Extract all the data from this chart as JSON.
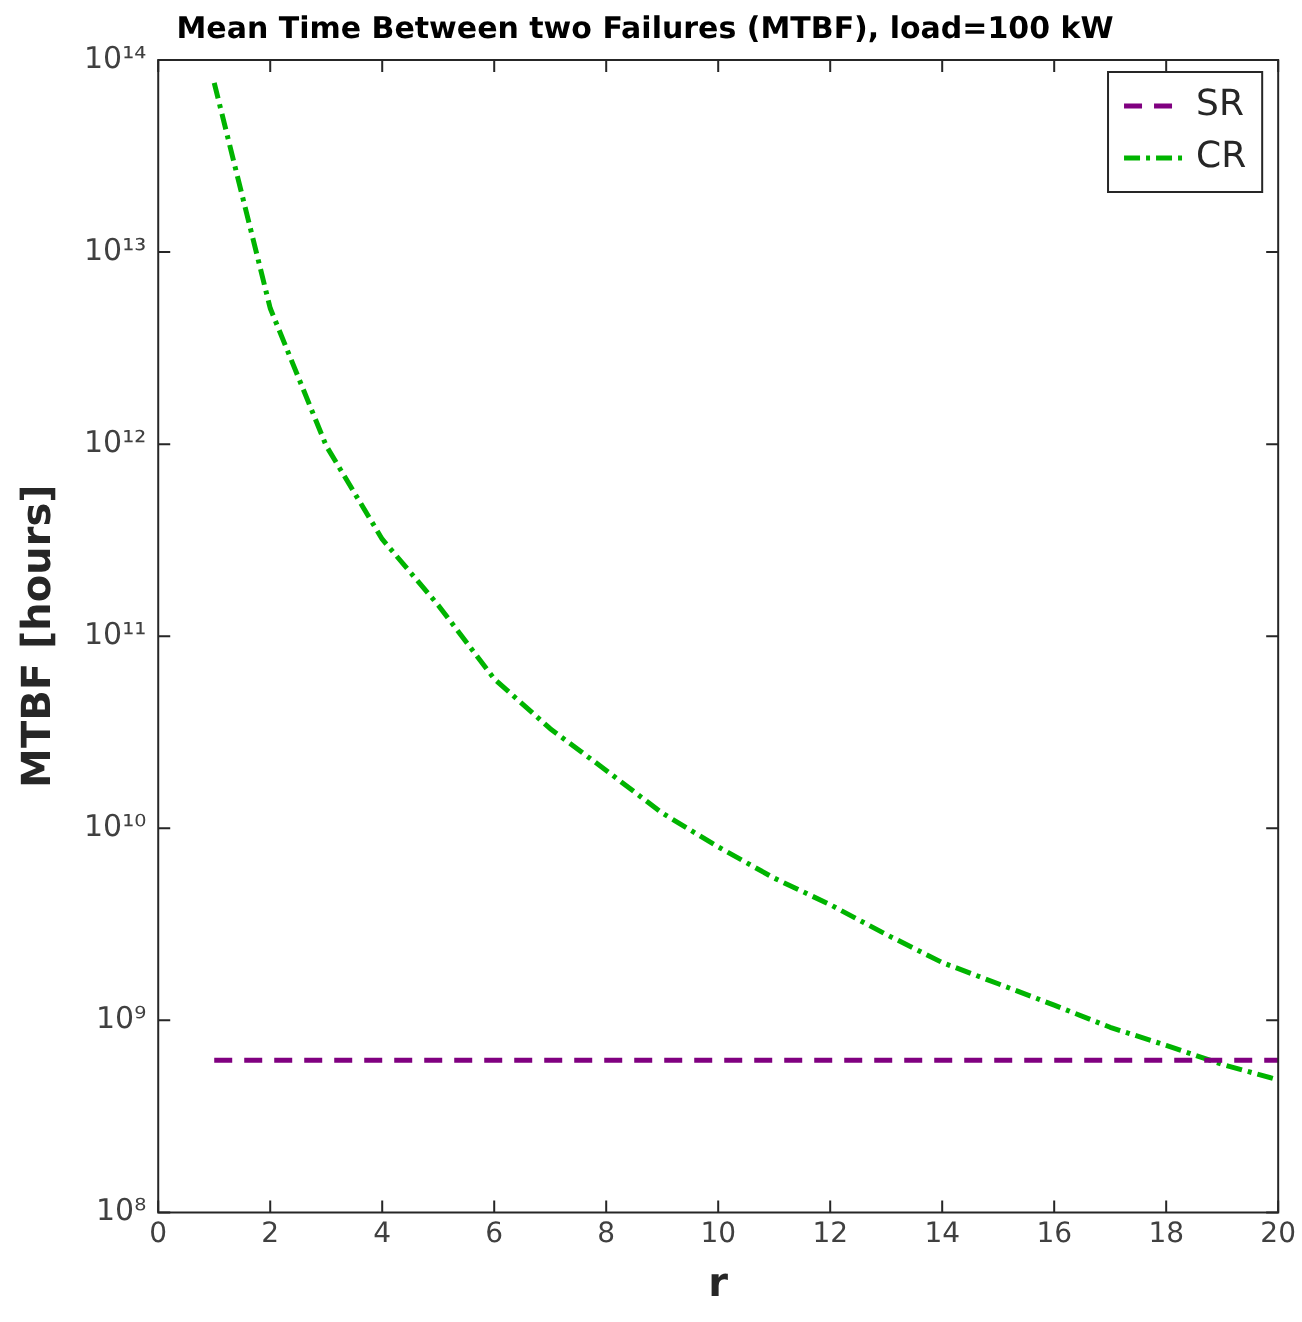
{
  "chart_data": {
    "type": "line",
    "title": "Mean Time Between two Failures (MTBF), load=100 kW",
    "xlabel": "r",
    "ylabel": "MTBF [hours]",
    "log": "y",
    "grid": false,
    "legend": "top right",
    "marker": "none",
    "xlim": [
      0,
      20
    ],
    "xticks": [
      0,
      2,
      4,
      6,
      8,
      10,
      12,
      14,
      16,
      18,
      20
    ],
    "ylim": [
      100000000.0,
      100000000000000.0
    ],
    "yticks": [
      {
        "value": 100000000.0,
        "label": "10⁸"
      },
      {
        "value": 1000000000.0,
        "label": "10⁹"
      },
      {
        "value": 10000000000.0,
        "label": "10¹⁰"
      },
      {
        "value": 100000000000.0,
        "label": "10¹¹"
      },
      {
        "value": 1000000000000.0,
        "label": "10¹²"
      },
      {
        "value": 10000000000000.0,
        "label": "10¹³"
      },
      {
        "value": 100000000000000.0,
        "label": "10¹⁴"
      }
    ],
    "series": [
      {
        "name": "SR",
        "color": "#800080",
        "line_style": "dashed",
        "x": [
          1,
          20
        ],
        "values": [
          620000000.0,
          620000000.0
        ]
      },
      {
        "name": "CR",
        "color": "#00b400",
        "line_style": "dashdot",
        "x": [
          1,
          2,
          3,
          4,
          5,
          6,
          7,
          8,
          9,
          10,
          11,
          12,
          13,
          14,
          15,
          16,
          17,
          18,
          19,
          20
        ],
        "values": [
          76000000000000.0,
          5100000000000.0,
          980000000000.0,
          320000000000.0,
          145000000000.0,
          60000000000.0,
          33000000000.0,
          20000000000.0,
          12000000000.0,
          8000000000.0,
          5500000000.0,
          4000000000.0,
          2800000000.0,
          2000000000.0,
          1550000000.0,
          1200000000.0,
          920000000.0,
          740000000.0,
          590000000.0,
          490000000.0
        ]
      }
    ]
  }
}
